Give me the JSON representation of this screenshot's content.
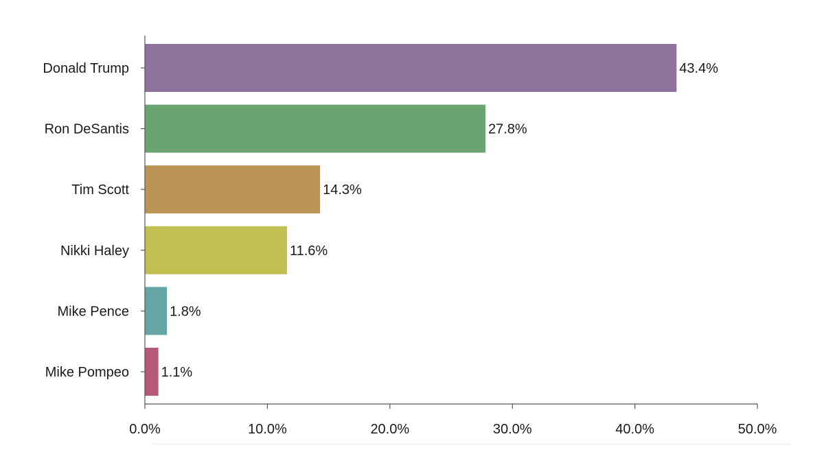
{
  "chart_data": {
    "type": "bar",
    "orientation": "horizontal",
    "categories": [
      "Donald Trump",
      "Ron DeSantis",
      "Tim Scott",
      "Nikki Haley",
      "Mike Pence",
      "Mike Pompeo"
    ],
    "values": [
      43.4,
      27.8,
      14.3,
      11.6,
      1.8,
      1.1
    ],
    "value_labels": [
      "43.4%",
      "27.8%",
      "14.3%",
      "11.6%",
      "1.8%",
      "1.1%"
    ],
    "colors": [
      "#8f729b",
      "#6aa471",
      "#b99455",
      "#c0bf52",
      "#64a6a5",
      "#b45a76"
    ],
    "xlim": [
      0,
      50
    ],
    "xticks": [
      0,
      10,
      20,
      30,
      40,
      50
    ],
    "xtick_labels": [
      "0.0%",
      "10.0%",
      "20.0%",
      "30.0%",
      "40.0%",
      "50.0%"
    ],
    "title": "",
    "xlabel": "",
    "ylabel": "",
    "grid": false,
    "legend": "none"
  }
}
